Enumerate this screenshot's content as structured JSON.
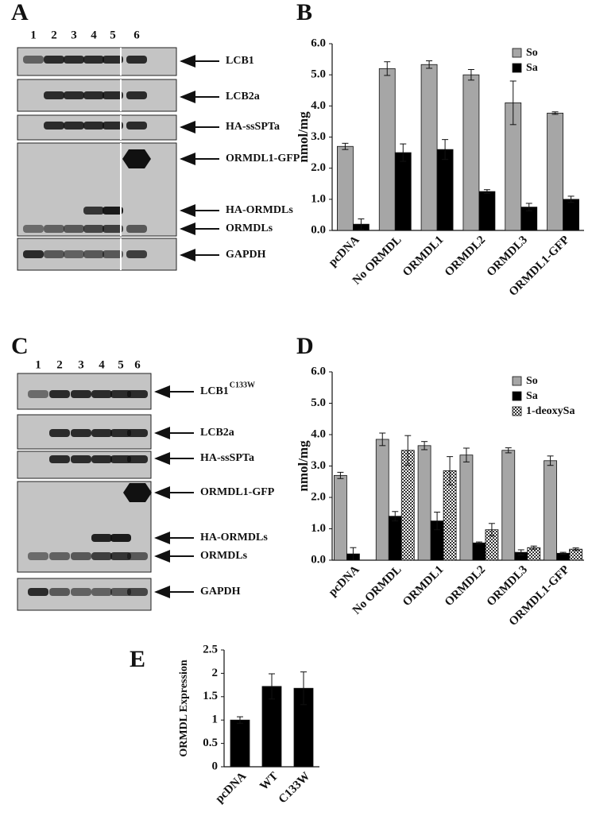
{
  "blots": [
    {
      "panel_label": "A",
      "lanes": [
        "1",
        "2",
        "3",
        "4",
        "5",
        "6"
      ],
      "targets": [
        {
          "name": "LCB1"
        },
        {
          "name": "LCB2a"
        },
        {
          "name": "HA-ssSPTa"
        },
        {
          "name": "ORMDL1-GFP"
        },
        {
          "name": "HA-ORMDLs"
        },
        {
          "name": "ORMDLs"
        },
        {
          "name": "GAPDH"
        }
      ]
    },
    {
      "panel_label": "C",
      "lanes": [
        "1",
        "2",
        "3",
        "4",
        "5",
        "6"
      ],
      "targets": [
        {
          "name": "LCB1",
          "superscript": "C133W"
        },
        {
          "name": "LCB2a"
        },
        {
          "name": "HA-ssSPTa"
        },
        {
          "name": "ORMDL1-GFP"
        },
        {
          "name": "HA-ORMDLs"
        },
        {
          "name": "ORMDLs"
        },
        {
          "name": "GAPDH"
        }
      ]
    }
  ],
  "chart_data": [
    {
      "type": "bar",
      "panel_label": "B",
      "y_label": "nmol/mg",
      "legend": "upper right",
      "categories": [
        "pcDNA",
        "No ORMDL",
        "ORMDL1",
        "ORMDL2",
        "ORMDL3",
        "ORMDL1-GFP"
      ],
      "series": [
        {
          "name": "So",
          "color": "#a6a6a6",
          "values": [
            2.7,
            5.2,
            5.33,
            5.0,
            4.1,
            3.77
          ],
          "errors": [
            0.1,
            0.22,
            0.12,
            0.17,
            0.7,
            0.04
          ]
        },
        {
          "name": "Sa",
          "color": "#000000",
          "values": [
            0.2,
            2.5,
            2.6,
            1.25,
            0.75,
            1.0
          ],
          "errors": [
            0.17,
            0.28,
            0.32,
            0.06,
            0.12,
            0.1
          ]
        }
      ],
      "ylim": [
        0,
        6
      ],
      "yticks": [
        {
          "value": 0,
          "label": "0.0"
        },
        {
          "value": 1,
          "label": "1.0"
        },
        {
          "value": 2,
          "label": "2.0"
        },
        {
          "value": 3,
          "label": "3.0"
        },
        {
          "value": 4,
          "label": "4.0"
        },
        {
          "value": 5,
          "label": "5.0"
        },
        {
          "value": 6,
          "label": "6.0"
        }
      ]
    },
    {
      "type": "bar",
      "panel_label": "D",
      "y_label": "nmol/mg",
      "legend": "upper right",
      "categories": [
        "pcDNA",
        "No ORMDL",
        "ORMDL1",
        "ORMDL2",
        "ORMDL3",
        "ORMDL1-GFP"
      ],
      "series": [
        {
          "name": "So",
          "color": "#a6a6a6",
          "values": [
            2.7,
            3.85,
            3.65,
            3.35,
            3.5,
            3.17
          ],
          "errors": [
            0.1,
            0.2,
            0.13,
            0.22,
            0.08,
            0.15
          ]
        },
        {
          "name": "Sa",
          "color": "#000000",
          "values": [
            0.2,
            1.4,
            1.25,
            0.55,
            0.25,
            0.22
          ],
          "errors": [
            0.2,
            0.15,
            0.28,
            0.03,
            0.08,
            0.03
          ]
        },
        {
          "name": "1-deoxySa",
          "color": "#ffffff",
          "pattern": "checker",
          "values": [
            null,
            3.5,
            2.85,
            0.97,
            0.4,
            0.35
          ],
          "errors": [
            null,
            0.47,
            0.45,
            0.2,
            0.05,
            0.04
          ]
        }
      ],
      "ylim": [
        0,
        6
      ],
      "yticks": [
        {
          "value": 0,
          "label": "0.0"
        },
        {
          "value": 1,
          "label": "1.0"
        },
        {
          "value": 2,
          "label": "2.0"
        },
        {
          "value": 3,
          "label": "3.0"
        },
        {
          "value": 4,
          "label": "4.0"
        },
        {
          "value": 5,
          "label": "5.0"
        },
        {
          "value": 6,
          "label": "6.0"
        }
      ]
    },
    {
      "type": "bar",
      "panel_label": "E",
      "y_label": "ORMDL Expression",
      "categories": [
        "pcDNA",
        "WT",
        "C133W"
      ],
      "series": [
        {
          "color": "#000000",
          "values": [
            1.0,
            1.72,
            1.68
          ],
          "errors": [
            0.07,
            0.27,
            0.35
          ]
        }
      ],
      "ylim": [
        0,
        2.5
      ],
      "yticks": [
        0,
        0.5,
        1,
        1.5,
        2,
        2.5
      ]
    }
  ]
}
